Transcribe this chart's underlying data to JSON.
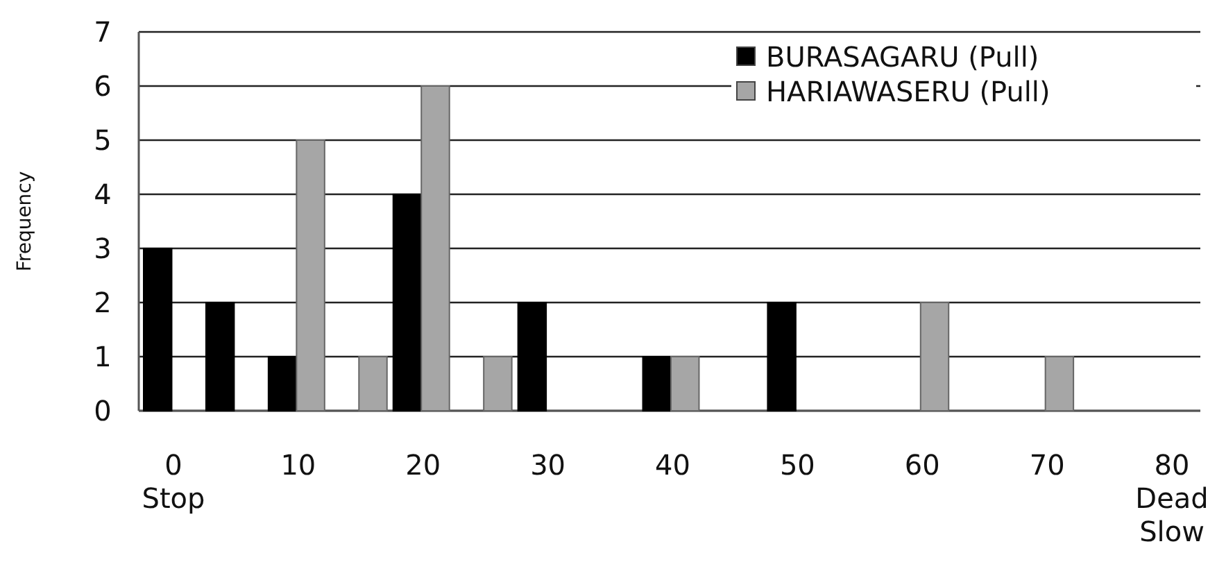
{
  "chart_data": {
    "type": "bar",
    "ylabel": "Frequency",
    "categories": [
      "0\nStop",
      null,
      "10",
      null,
      "20",
      null,
      "30",
      null,
      "40",
      null,
      "50",
      null,
      "60",
      null,
      "70",
      null,
      "80\nDead\nSlow"
    ],
    "series": [
      {
        "name": "BURASAGARU (Pull)",
        "color": "#000000",
        "values": [
          3,
          2,
          1,
          null,
          4,
          null,
          2,
          null,
          1,
          null,
          2,
          null,
          null,
          null,
          null,
          null,
          null
        ]
      },
      {
        "name": "HARIAWASERU (Pull)",
        "color": "#a6a6a6",
        "values": [
          null,
          null,
          5,
          1,
          6,
          1,
          null,
          null,
          1,
          null,
          null,
          null,
          2,
          null,
          1,
          null,
          null
        ]
      }
    ],
    "ylim": [
      0,
      7
    ],
    "yticks": [
      0,
      1,
      2,
      3,
      4,
      5,
      6,
      7
    ],
    "grid": "y",
    "legend": "top right"
  }
}
